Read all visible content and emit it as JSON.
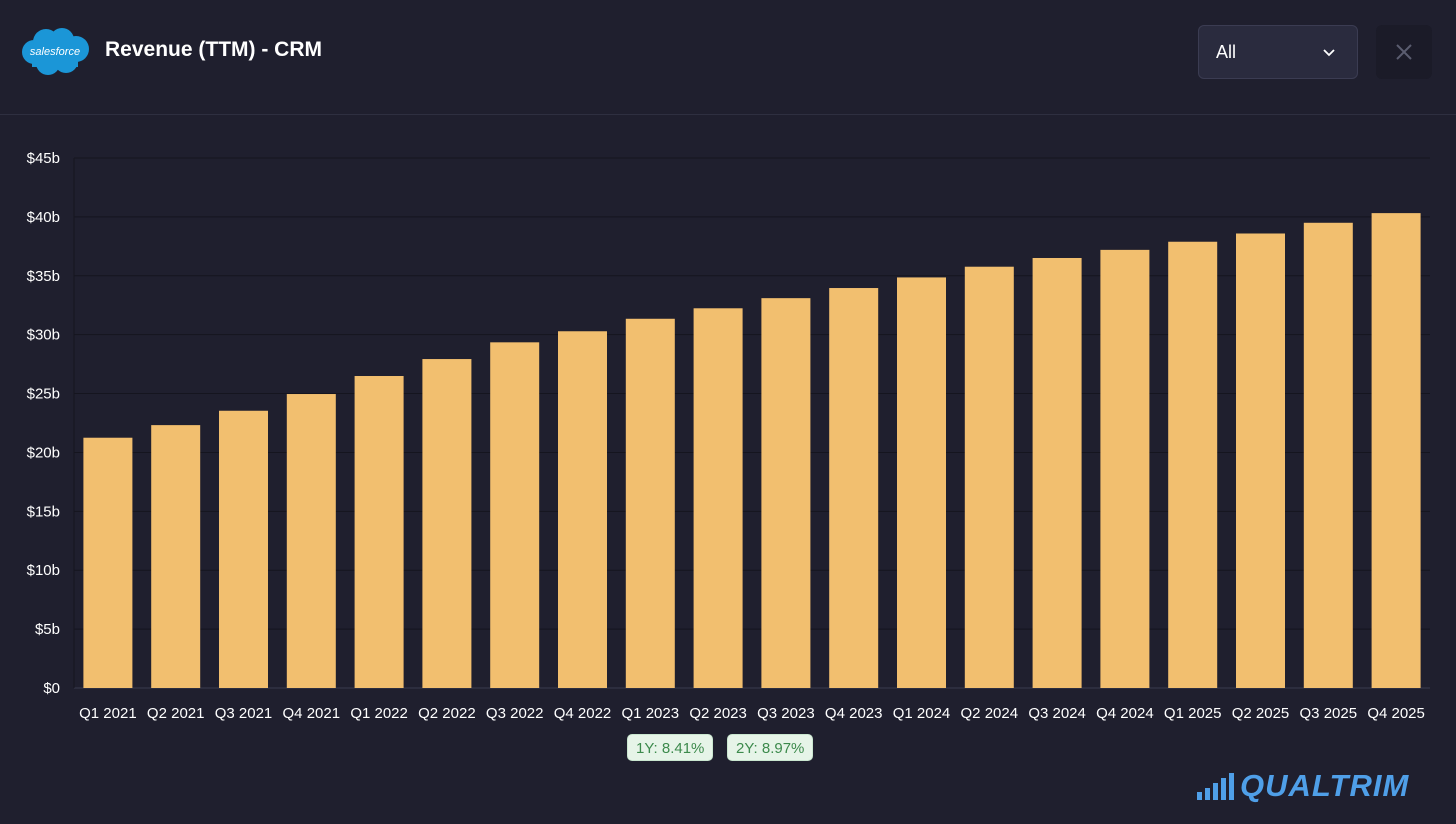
{
  "header": {
    "logo_text": "salesforce",
    "title": "Revenue (TTM) - CRM",
    "range_select_value": "All"
  },
  "icons": {
    "dropdown": "chevron-down-icon",
    "close": "close-icon",
    "brand_logo": "bar-signal-icon"
  },
  "colors": {
    "background": "#1f1f2e",
    "bar": "#f2bf6f",
    "brand": "#4f9fe8",
    "badge_text": "#3c8a4c",
    "badge_bg": "#e6f4e8"
  },
  "chart_data": {
    "type": "bar",
    "categories": [
      "Q1 2021",
      "Q2 2021",
      "Q3 2021",
      "Q4 2021",
      "Q1 2022",
      "Q2 2022",
      "Q3 2022",
      "Q4 2022",
      "Q1 2023",
      "Q2 2023",
      "Q3 2023",
      "Q4 2023",
      "Q1 2024",
      "Q2 2024",
      "Q3 2024",
      "Q4 2024",
      "Q1 2025",
      "Q2 2025",
      "Q3 2025",
      "Q4 2025"
    ],
    "values": [
      21.25,
      22.32,
      23.54,
      24.96,
      26.49,
      27.93,
      29.35,
      30.29,
      31.35,
      32.24,
      33.1,
      33.96,
      34.86,
      35.77,
      36.51,
      37.2,
      37.89,
      38.59,
      39.5,
      40.32
    ],
    "unit": "b",
    "ylim": [
      0,
      45
    ],
    "yticks": [
      0,
      5,
      10,
      15,
      20,
      25,
      30,
      35,
      40,
      45
    ],
    "ytick_labels": [
      "$0",
      "$5b",
      "$10b",
      "$15b",
      "$20b",
      "$25b",
      "$30b",
      "$35b",
      "$40b",
      "$45b"
    ],
    "title": "",
    "xlabel": "",
    "ylabel": "",
    "grid": true,
    "legend": "none"
  },
  "growth_badges": [
    {
      "label": "1Y: 8.41%"
    },
    {
      "label": "2Y: 8.97%"
    }
  ],
  "brand": {
    "name": "QUALTRIM"
  }
}
